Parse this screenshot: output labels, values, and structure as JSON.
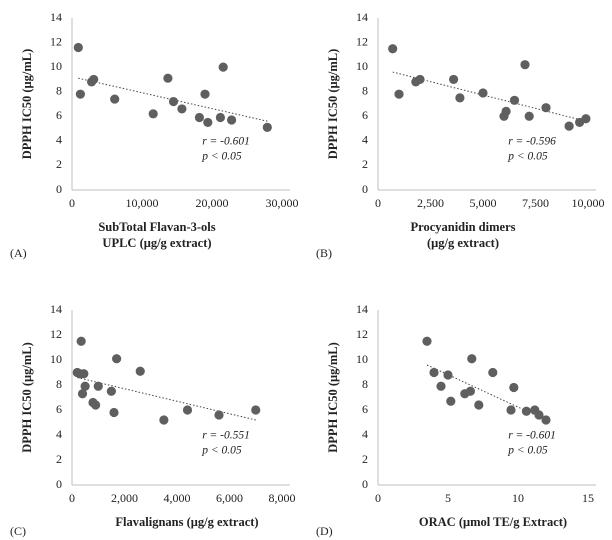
{
  "chart_data": [
    {
      "type": "scatter",
      "panel_label": "(A)",
      "xlabel": [
        "SubTotal Flavan-3-ols",
        "UPLC (μg/g extract)"
      ],
      "ylabel": "DPPH IC50 (μg/mL)",
      "x": [
        900,
        1200,
        2800,
        3100,
        6100,
        11600,
        13700,
        14500,
        15700,
        18200,
        19000,
        19400,
        21200,
        21600,
        22800,
        27900
      ],
      "y": [
        11.6,
        7.8,
        8.8,
        9.0,
        7.4,
        6.2,
        9.1,
        7.2,
        6.6,
        5.9,
        7.8,
        5.5,
        5.9,
        10.0,
        5.7,
        5.1
      ],
      "xlim": [
        0,
        30000
      ],
      "ylim": [
        0,
        14
      ],
      "xticks": [
        0,
        {
          "value": 10000,
          "label": "10,000"
        },
        {
          "value": 20000,
          "label": "20,000"
        },
        {
          "value": 30000,
          "label": "30,000"
        }
      ],
      "yticks": [
        0,
        2,
        4,
        6,
        8,
        10,
        12,
        14
      ],
      "trendline": {
        "x": [
          900,
          27900
        ],
        "y": [
          9.1,
          5.6
        ]
      },
      "annotations": [
        "r = -0.601",
        "p < 0.05"
      ],
      "color": "#5f5f5f"
    },
    {
      "type": "scatter",
      "panel_label": "(B)",
      "xlabel": [
        "Procyanidin dimers",
        "(μg/g extract)"
      ],
      "ylabel": "DPPH IC50 (μg/mL)",
      "x": [
        700,
        1000,
        1800,
        2000,
        3600,
        3900,
        5000,
        6000,
        6100,
        6500,
        7000,
        7200,
        8000,
        9100,
        9600,
        9900
      ],
      "y": [
        11.5,
        7.8,
        8.8,
        9.0,
        9.0,
        7.5,
        7.9,
        6.0,
        6.4,
        7.3,
        10.2,
        6.0,
        6.7,
        5.2,
        5.5,
        5.8
      ],
      "xlim": [
        0,
        10000
      ],
      "ylim": [
        0,
        14
      ],
      "xticks": [
        0,
        {
          "value": 2500,
          "label": "2,500"
        },
        {
          "value": 5000,
          "label": "5,000"
        },
        {
          "value": 7500,
          "label": "7,500"
        },
        {
          "value": 10000,
          "label": "10,000"
        }
      ],
      "yticks": [
        0,
        2,
        4,
        6,
        8,
        10,
        12,
        14
      ],
      "trendline": {
        "x": [
          700,
          9900
        ],
        "y": [
          9.6,
          5.6
        ]
      },
      "annotations": [
        "r = -0.596",
        "p < 0.05"
      ],
      "color": "#5f5f5f"
    },
    {
      "type": "scatter",
      "panel_label": "(C)",
      "xlabel": [
        "Flavalignans (μg/g extract)"
      ],
      "ylabel": "DPPH IC50 (μg/mL)",
      "x": [
        200,
        300,
        350,
        400,
        450,
        500,
        800,
        900,
        1000,
        1500,
        1600,
        1700,
        2600,
        3500,
        4400,
        5600,
        7000
      ],
      "y": [
        9.0,
        8.9,
        11.5,
        7.3,
        8.9,
        7.9,
        6.6,
        6.4,
        7.9,
        7.5,
        5.8,
        10.1,
        9.1,
        5.2,
        6.0,
        5.6,
        6.0
      ],
      "xlim": [
        0,
        8000
      ],
      "ylim": [
        0,
        14
      ],
      "xticks": [
        0,
        {
          "value": 2000,
          "label": "2,000"
        },
        {
          "value": 4000,
          "label": "4,000"
        },
        {
          "value": 6000,
          "label": "6,000"
        },
        {
          "value": 8000,
          "label": "8,000"
        }
      ],
      "yticks": [
        0,
        2,
        4,
        6,
        8,
        10,
        12,
        14
      ],
      "trendline": {
        "x": [
          200,
          7000
        ],
        "y": [
          8.6,
          5.2
        ]
      },
      "annotations": [
        "r = -0.551",
        "p < 0.05"
      ],
      "color": "#5f5f5f"
    },
    {
      "type": "scatter",
      "panel_label": "(D)",
      "xlabel": [
        "ORAC (μmol TE/g Extract)"
      ],
      "ylabel": "DPPH IC50 (μg/mL)",
      "x": [
        3.5,
        4.0,
        4.5,
        5.0,
        5.2,
        6.2,
        6.6,
        6.7,
        7.2,
        8.2,
        9.5,
        9.7,
        10.6,
        11.2,
        11.5,
        12.0
      ],
      "y": [
        11.5,
        9.0,
        7.9,
        8.8,
        6.7,
        7.3,
        7.5,
        10.1,
        6.4,
        9.0,
        6.0,
        7.8,
        5.9,
        6.0,
        5.6,
        5.2
      ],
      "xlim": [
        0,
        15
      ],
      "ylim": [
        0,
        14
      ],
      "xticks": [
        0,
        5,
        10,
        15
      ],
      "yticks": [
        0,
        2,
        4,
        6,
        8,
        10,
        12,
        14
      ],
      "trendline": {
        "x": [
          3.5,
          12.0
        ],
        "y": [
          9.6,
          5.2
        ]
      },
      "annotations": [
        "r = -0.601",
        "p < 0.05"
      ],
      "color": "#5f5f5f"
    }
  ]
}
